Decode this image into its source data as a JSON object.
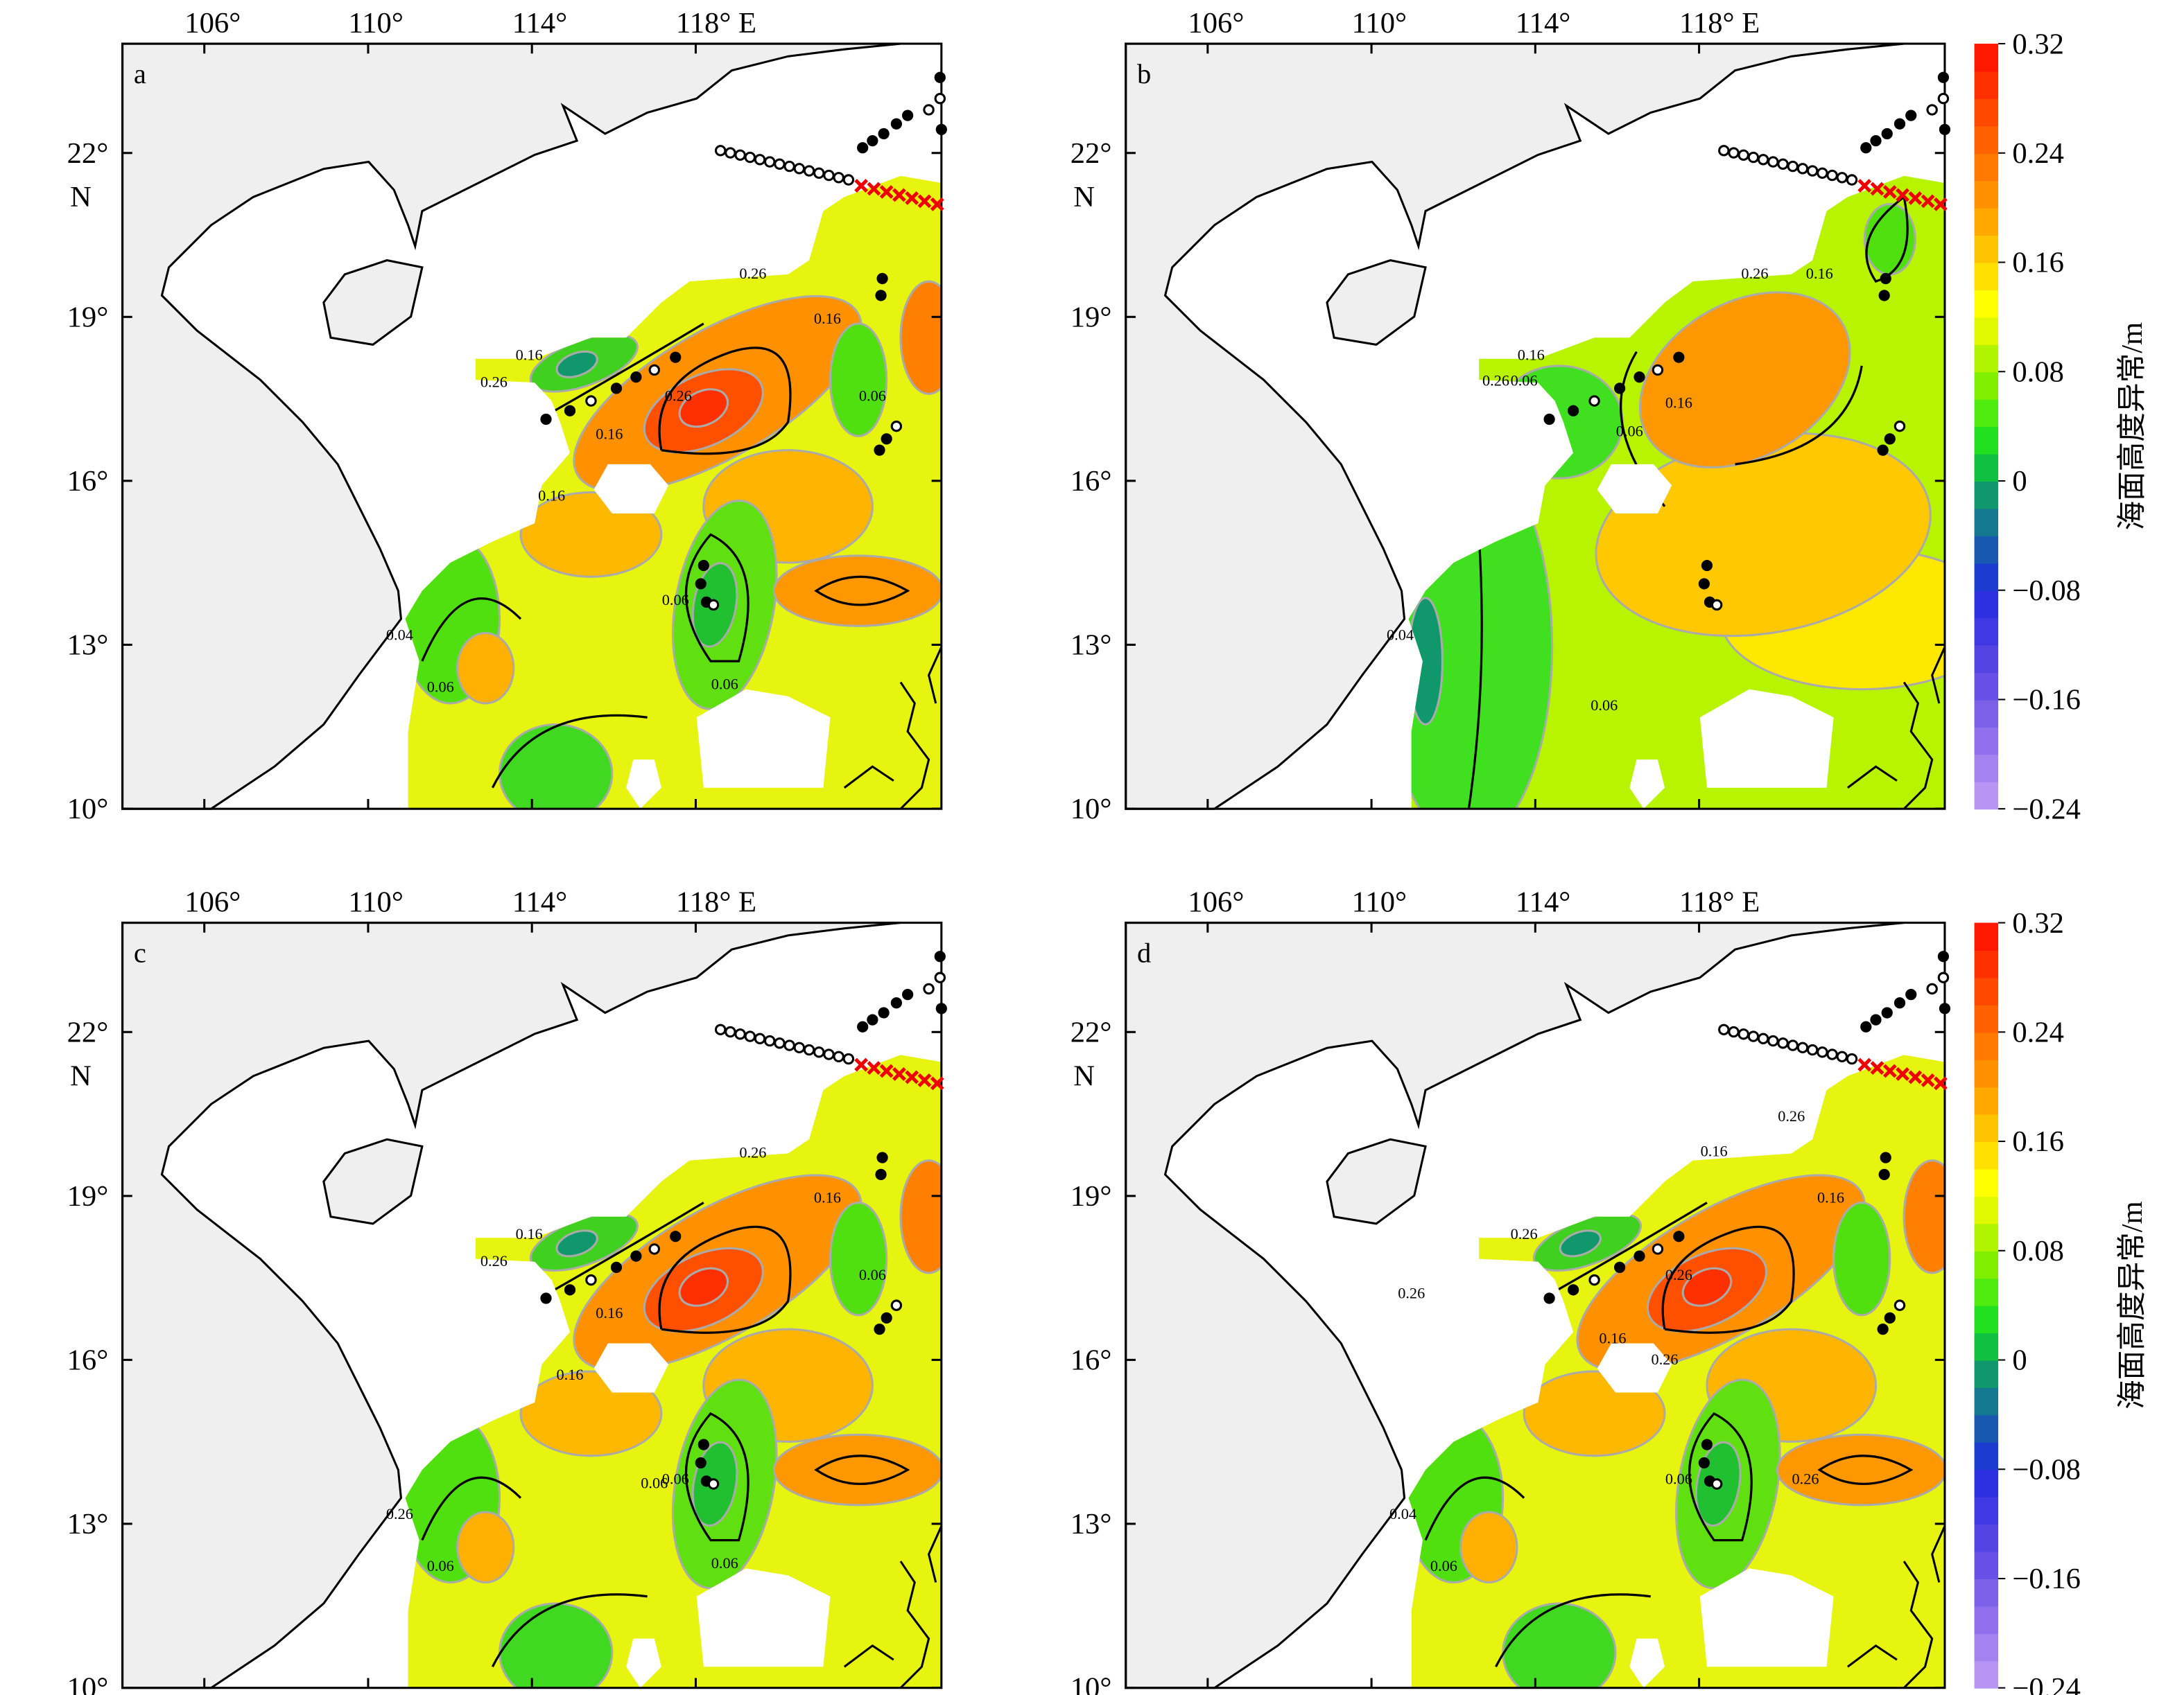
{
  "axes": {
    "xticks": [
      {
        "value": 106,
        "label": "106°"
      },
      {
        "value": 110,
        "label": "110°"
      },
      {
        "value": 114,
        "label": "114°"
      },
      {
        "value": 118,
        "label": "118° E"
      }
    ],
    "yticks": [
      {
        "value": 22,
        "label": "22°"
      },
      {
        "value": 19,
        "label": "19°"
      },
      {
        "value": 16,
        "label": "16°"
      },
      {
        "value": 13,
        "label": "13°"
      },
      {
        "value": 10,
        "label": "10°"
      }
    ],
    "lat_hemisphere": "N"
  },
  "panels": [
    {
      "label": "a",
      "contour_labels": [
        0.26,
        0.16,
        0.26,
        0.16,
        0.16,
        0.26,
        0.16,
        0.06,
        0.06,
        0.04,
        0.06,
        0.06
      ]
    },
    {
      "label": "b",
      "contour_labels": [
        0.26,
        0.16,
        0.26,
        0.06,
        0.06,
        0.16,
        0.06,
        0.16,
        0.04
      ]
    },
    {
      "label": "c",
      "contour_labels": [
        0.26,
        0.16,
        0.26,
        0.16,
        0.16,
        0.16,
        0.06,
        0.06,
        0.26,
        0.06,
        0.06,
        0.06
      ]
    },
    {
      "label": "d",
      "contour_labels": [
        0.16,
        0.26,
        0.26,
        0.26,
        0.16,
        0.16,
        0.26,
        0.26,
        0.06,
        0.04,
        0.06,
        0.26
      ]
    }
  ],
  "colorbar": {
    "label": "海面高度异常/m",
    "lim": [
      -0.24,
      0.32
    ],
    "ticks": [
      0.32,
      0.24,
      0.16,
      0.08,
      0,
      {
        "value": -0.08,
        "label": "−0.08"
      },
      {
        "value": -0.16,
        "label": "−0.16"
      },
      {
        "value": -0.24,
        "label": "−0.24"
      }
    ],
    "colors": [
      "#b894f4",
      "#a482f0",
      "#9070ec",
      "#7c60e8",
      "#6850e6",
      "#5444e4",
      "#4038e2",
      "#2c30e0",
      "#1c3cd0",
      "#1858b0",
      "#147890",
      "#10986c",
      "#10c040",
      "#20e020",
      "#50ec10",
      "#80f000",
      "#b0f400",
      "#e0f800",
      "#ffff00",
      "#ffe000",
      "#ffc400",
      "#ffa800",
      "#ff9000",
      "#ff7800",
      "#ff6000",
      "#ff4800",
      "#ff3000",
      "#ff1800"
    ]
  }
}
